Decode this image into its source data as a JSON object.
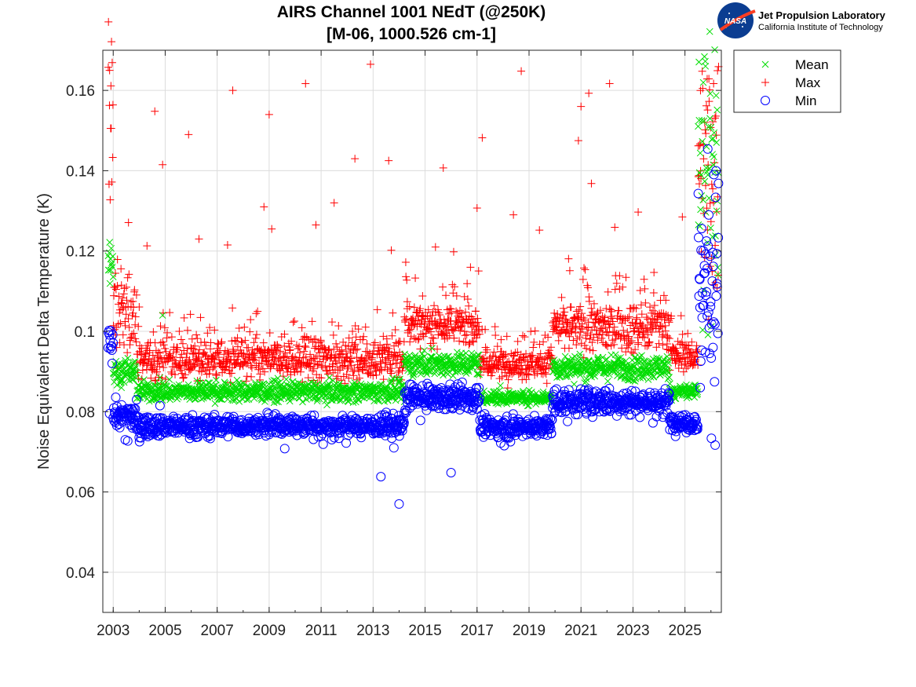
{
  "chart_data": {
    "type": "scatter",
    "title": "AIRS Channel 1001 NEdT (@250K)",
    "subtitle": "[M-06, 1000.526 cm-1]",
    "xlabel": "",
    "ylabel": "Noise Equivalent Delta Temperature (K)",
    "xlim": [
      2002.6,
      2026.4
    ],
    "ylim": [
      0.03,
      0.17
    ],
    "x_ticks": [
      "2003",
      "2005",
      "2007",
      "2009",
      "2011",
      "2013",
      "2015",
      "2017",
      "2019",
      "2021",
      "2023",
      "2025"
    ],
    "y_ticks": [
      "0.04",
      "0.06",
      "0.08",
      "0.1",
      "0.12",
      "0.14",
      "0.16"
    ],
    "grid": true,
    "legend_position": "outside-top-right",
    "colors": {
      "mean": "#00dd00",
      "max": "#ff0000",
      "min": "#0000ff"
    },
    "series": [
      {
        "name": "Mean",
        "marker": "x",
        "segments": [
          {
            "x": [
              2002.8,
              2003.0
            ],
            "level": 0.118,
            "spread": 0.003
          },
          {
            "x": [
              2003.0,
              2003.9
            ],
            "level": 0.09,
            "spread": 0.0015
          },
          {
            "x": [
              2003.9,
              2014.2
            ],
            "level": 0.085,
            "spread": 0.0012
          },
          {
            "x": [
              2014.2,
              2017.1
            ],
            "level": 0.092,
            "spread": 0.0015
          },
          {
            "x": [
              2017.1,
              2019.9
            ],
            "level": 0.0835,
            "spread": 0.0008
          },
          {
            "x": [
              2019.9,
              2024.4
            ],
            "level": 0.091,
            "spread": 0.0015
          },
          {
            "x": [
              2024.4,
              2025.5
            ],
            "level": 0.085,
            "spread": 0.001
          },
          {
            "x": [
              2025.5,
              2026.3
            ],
            "level": 0.135,
            "spread": 0.02
          }
        ],
        "outliers": [
          [
            2004.9,
            0.104
          ],
          [
            2004.8,
            0.0885
          ],
          [
            2017.9,
            0.0865
          ]
        ]
      },
      {
        "name": "Max",
        "marker": "+",
        "segments": [
          {
            "x": [
              2002.8,
              2003.0
            ],
            "level": 0.153,
            "spread": 0.012
          },
          {
            "x": [
              2003.0,
              2003.9
            ],
            "level": 0.104,
            "spread": 0.005
          },
          {
            "x": [
              2003.9,
              2014.2
            ],
            "level": 0.093,
            "spread": 0.0025
          },
          {
            "x": [
              2014.2,
              2017.1
            ],
            "level": 0.102,
            "spread": 0.0025
          },
          {
            "x": [
              2017.1,
              2019.9
            ],
            "level": 0.092,
            "spread": 0.002
          },
          {
            "x": [
              2019.9,
              2024.4
            ],
            "level": 0.101,
            "spread": 0.003
          },
          {
            "x": [
              2024.4,
              2025.5
            ],
            "level": 0.094,
            "spread": 0.002
          },
          {
            "x": [
              2025.5,
              2026.3
            ],
            "level": 0.14,
            "spread": 0.018
          }
        ],
        "outliers": [
          [
            2004.6,
            0.1548
          ],
          [
            2004.9,
            0.1415
          ],
          [
            2005.9,
            0.149
          ],
          [
            2007.6,
            0.16
          ],
          [
            2009.0,
            0.154
          ],
          [
            2010.4,
            0.1617
          ],
          [
            2012.3,
            0.143
          ],
          [
            2012.9,
            0.1665
          ],
          [
            2013.6,
            0.1425
          ],
          [
            2015.7,
            0.1407
          ],
          [
            2017.2,
            0.1482
          ],
          [
            2018.7,
            0.1648
          ],
          [
            2020.9,
            0.1475
          ],
          [
            2021.0,
            0.156
          ],
          [
            2021.3,
            0.1593
          ],
          [
            2022.1,
            0.1617
          ],
          [
            2021.4,
            0.1368
          ],
          [
            2004.3,
            0.1213
          ],
          [
            2006.3,
            0.123
          ],
          [
            2007.4,
            0.1215
          ],
          [
            2008.8,
            0.131
          ],
          [
            2009.1,
            0.1255
          ],
          [
            2010.8,
            0.1265
          ],
          [
            2011.5,
            0.132
          ],
          [
            2013.7,
            0.1202
          ],
          [
            2015.4,
            0.121
          ],
          [
            2016.1,
            0.1198
          ],
          [
            2017.0,
            0.1307
          ],
          [
            2018.4,
            0.129
          ],
          [
            2019.4,
            0.1252
          ],
          [
            2022.3,
            0.1259
          ],
          [
            2023.2,
            0.1297
          ],
          [
            2024.9,
            0.1285
          ]
        ]
      },
      {
        "name": "Min",
        "marker": "o",
        "segments": [
          {
            "x": [
              2002.8,
              2003.0
            ],
            "level": 0.099,
            "spread": 0.004
          },
          {
            "x": [
              2003.0,
              2003.9
            ],
            "level": 0.079,
            "spread": 0.0018
          },
          {
            "x": [
              2003.9,
              2014.2
            ],
            "level": 0.0765,
            "spread": 0.0012
          },
          {
            "x": [
              2014.2,
              2017.1
            ],
            "level": 0.0835,
            "spread": 0.0015
          },
          {
            "x": [
              2017.1,
              2019.9
            ],
            "level": 0.0762,
            "spread": 0.0012
          },
          {
            "x": [
              2019.9,
              2024.4
            ],
            "level": 0.0825,
            "spread": 0.0015
          },
          {
            "x": [
              2024.4,
              2025.5
            ],
            "level": 0.0775,
            "spread": 0.0012
          },
          {
            "x": [
              2025.5,
              2026.3
            ],
            "level": 0.112,
            "spread": 0.014
          }
        ],
        "outliers": [
          [
            2013.3,
            0.0638
          ],
          [
            2014.0,
            0.057
          ],
          [
            2016.0,
            0.0648
          ],
          [
            2009.6,
            0.0708
          ],
          [
            2013.8,
            0.071
          ],
          [
            2004.8,
            0.0815
          ]
        ]
      }
    ]
  },
  "legend": {
    "entries": [
      "Mean",
      "Max",
      "Min"
    ]
  },
  "branding": {
    "logo_text": "NASA",
    "org_name": "Jet Propulsion Laboratory",
    "org_sub": "California Institute of Technology"
  }
}
